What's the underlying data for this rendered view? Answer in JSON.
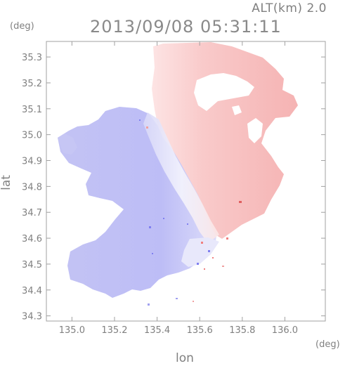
{
  "header": {
    "alt_label": "ALT(km)  2.0",
    "timestamp": "2013/09/08 05:31:11"
  },
  "axes": {
    "x_unit": "(deg)",
    "y_unit": "(deg)",
    "x_name": "lon",
    "y_name": "lat"
  },
  "chart_data": {
    "type": "heatmap",
    "xlabel": "lon",
    "ylabel": "lat",
    "xlim": [
      134.88,
      136.19
    ],
    "ylim": [
      34.28,
      35.36
    ],
    "xticks": [
      135.0,
      135.2,
      135.4,
      135.6,
      135.8,
      136.0
    ],
    "yticks": [
      34.3,
      34.4,
      34.5,
      34.6,
      34.7,
      34.8,
      34.9,
      35.0,
      35.1,
      35.2,
      35.3
    ],
    "xtick_labels": [
      "135.0",
      "135.2",
      "135.4",
      "135.6",
      "135.8",
      "136.0"
    ],
    "ytick_labels": [
      "34.3",
      "34.4",
      "34.5",
      "34.6",
      "34.7",
      "34.8",
      "34.9",
      "35.0",
      "35.1",
      "35.2",
      "35.3"
    ],
    "grid": false,
    "colors": {
      "negative": "#bcbcf6",
      "positive": "#f6b4b4",
      "neutral": "#ffffff"
    }
  }
}
